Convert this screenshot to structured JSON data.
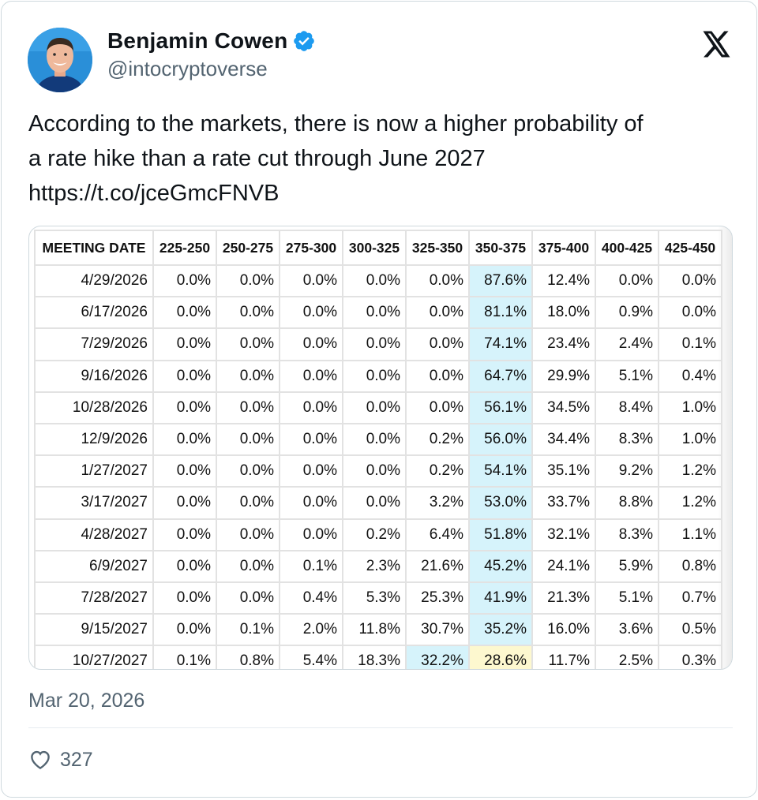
{
  "author": {
    "name": "Benjamin Cowen",
    "handle": "@intocryptoverse",
    "avatar_icon": "avatar-photo",
    "verified_color": "#1d9bf0"
  },
  "tweet": {
    "line1": "According to the markets, there is now a higher probability of",
    "line2": "a rate hike than a rate cut through June 2027",
    "link": "https://t.co/jceGmcFNVB",
    "date": "Mar 20, 2026",
    "likes": "327"
  },
  "table": {
    "header_date": "MEETING DATE",
    "ranges": [
      "225-250",
      "250-275",
      "275-300",
      "300-325",
      "325-350",
      "350-375",
      "375-400",
      "400-425",
      "425-450"
    ],
    "rows": [
      {
        "date": "4/29/2026",
        "values": [
          "0.0%",
          "0.0%",
          "0.0%",
          "0.0%",
          "0.0%",
          "87.6%",
          "12.4%",
          "0.0%",
          "0.0%"
        ],
        "hl": [
          5
        ]
      },
      {
        "date": "6/17/2026",
        "values": [
          "0.0%",
          "0.0%",
          "0.0%",
          "0.0%",
          "0.0%",
          "81.1%",
          "18.0%",
          "0.9%",
          "0.0%"
        ],
        "hl": [
          5
        ]
      },
      {
        "date": "7/29/2026",
        "values": [
          "0.0%",
          "0.0%",
          "0.0%",
          "0.0%",
          "0.0%",
          "74.1%",
          "23.4%",
          "2.4%",
          "0.1%"
        ],
        "hl": [
          5
        ]
      },
      {
        "date": "9/16/2026",
        "values": [
          "0.0%",
          "0.0%",
          "0.0%",
          "0.0%",
          "0.0%",
          "64.7%",
          "29.9%",
          "5.1%",
          "0.4%"
        ],
        "hl": [
          5
        ]
      },
      {
        "date": "10/28/2026",
        "values": [
          "0.0%",
          "0.0%",
          "0.0%",
          "0.0%",
          "0.0%",
          "56.1%",
          "34.5%",
          "8.4%",
          "1.0%"
        ],
        "hl": [
          5
        ]
      },
      {
        "date": "12/9/2026",
        "values": [
          "0.0%",
          "0.0%",
          "0.0%",
          "0.0%",
          "0.2%",
          "56.0%",
          "34.4%",
          "8.3%",
          "1.0%"
        ],
        "hl": [
          5
        ]
      },
      {
        "date": "1/27/2027",
        "values": [
          "0.0%",
          "0.0%",
          "0.0%",
          "0.0%",
          "0.2%",
          "54.1%",
          "35.1%",
          "9.2%",
          "1.2%"
        ],
        "hl": [
          5
        ]
      },
      {
        "date": "3/17/2027",
        "values": [
          "0.0%",
          "0.0%",
          "0.0%",
          "0.0%",
          "3.2%",
          "53.0%",
          "33.7%",
          "8.8%",
          "1.2%"
        ],
        "hl": [
          5
        ]
      },
      {
        "date": "4/28/2027",
        "values": [
          "0.0%",
          "0.0%",
          "0.0%",
          "0.2%",
          "6.4%",
          "51.8%",
          "32.1%",
          "8.3%",
          "1.1%"
        ],
        "hl": [
          5
        ]
      },
      {
        "date": "6/9/2027",
        "values": [
          "0.0%",
          "0.0%",
          "0.1%",
          "2.3%",
          "21.6%",
          "45.2%",
          "24.1%",
          "5.9%",
          "0.8%"
        ],
        "hl": [
          5
        ]
      },
      {
        "date": "7/28/2027",
        "values": [
          "0.0%",
          "0.0%",
          "0.4%",
          "5.3%",
          "25.3%",
          "41.9%",
          "21.3%",
          "5.1%",
          "0.7%"
        ],
        "hl": [
          5
        ]
      },
      {
        "date": "9/15/2027",
        "values": [
          "0.0%",
          "0.1%",
          "2.0%",
          "11.8%",
          "30.7%",
          "35.2%",
          "16.0%",
          "3.6%",
          "0.5%"
        ],
        "hl": [
          5
        ]
      },
      {
        "date": "10/27/2027",
        "values": [
          "0.1%",
          "0.8%",
          "5.4%",
          "18.3%",
          "32.2%",
          "28.6%",
          "11.7%",
          "2.5%",
          "0.3%"
        ],
        "hl": [
          4
        ],
        "hl_yellow": [
          5
        ]
      }
    ],
    "highlight_blue": "#d6f3fb",
    "highlight_yellow": "#fdf8cf"
  }
}
